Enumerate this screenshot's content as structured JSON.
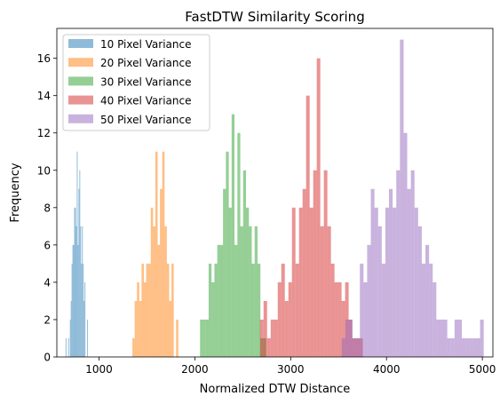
{
  "chart_data": {
    "type": "histogram",
    "title": "FastDTW Similarity Scoring",
    "xlabel": "Normalized DTW Distance",
    "ylabel": "Frequency",
    "xlim": [
      560,
      5110
    ],
    "ylim": [
      0,
      17.6
    ],
    "xticks": [
      1000,
      2000,
      3000,
      4000,
      5000
    ],
    "yticks": [
      0,
      2,
      4,
      6,
      8,
      10,
      12,
      14,
      16
    ],
    "legend_position": "top-left",
    "alpha": 0.5,
    "series": [
      {
        "name": "10 Pixel Variance",
        "color": "#1f77b4",
        "bin_width": 9,
        "bins": [
          [
            651,
            1
          ],
          [
            678,
            1
          ],
          [
            696,
            2
          ],
          [
            705,
            3
          ],
          [
            714,
            5
          ],
          [
            723,
            6
          ],
          [
            732,
            6
          ],
          [
            741,
            8
          ],
          [
            750,
            8
          ],
          [
            759,
            7
          ],
          [
            768,
            11
          ],
          [
            777,
            6
          ],
          [
            786,
            9
          ],
          [
            795,
            10
          ],
          [
            804,
            7
          ],
          [
            813,
            5
          ],
          [
            822,
            7
          ],
          [
            831,
            5
          ],
          [
            840,
            3
          ],
          [
            849,
            4
          ],
          [
            876,
            2
          ]
        ]
      },
      {
        "name": "20 Pixel Variance",
        "color": "#ff7f0e",
        "bin_width": 24,
        "bins": [
          [
            1348,
            1
          ],
          [
            1372,
            3
          ],
          [
            1396,
            4
          ],
          [
            1420,
            3
          ],
          [
            1444,
            5
          ],
          [
            1468,
            4
          ],
          [
            1492,
            5
          ],
          [
            1516,
            5
          ],
          [
            1540,
            8
          ],
          [
            1564,
            7
          ],
          [
            1588,
            11
          ],
          [
            1612,
            6
          ],
          [
            1636,
            9
          ],
          [
            1660,
            11
          ],
          [
            1684,
            7
          ],
          [
            1708,
            5
          ],
          [
            1732,
            3
          ],
          [
            1756,
            5
          ],
          [
            1804,
            2
          ]
        ]
      },
      {
        "name": "30 Pixel Variance",
        "color": "#2ca02c",
        "bin_width": 30,
        "bins": [
          [
            2054,
            2
          ],
          [
            2084,
            2
          ],
          [
            2114,
            2
          ],
          [
            2144,
            5
          ],
          [
            2174,
            4
          ],
          [
            2204,
            5
          ],
          [
            2234,
            6
          ],
          [
            2264,
            6
          ],
          [
            2294,
            9
          ],
          [
            2324,
            11
          ],
          [
            2354,
            8
          ],
          [
            2384,
            13
          ],
          [
            2414,
            6
          ],
          [
            2444,
            12
          ],
          [
            2474,
            7
          ],
          [
            2504,
            10
          ],
          [
            2534,
            8
          ],
          [
            2564,
            7
          ],
          [
            2594,
            5
          ],
          [
            2624,
            7
          ],
          [
            2654,
            5
          ],
          [
            2684,
            1
          ],
          [
            2714,
            1
          ]
        ]
      },
      {
        "name": "40 Pixel Variance",
        "color": "#d62728",
        "bin_width": 37,
        "bins": [
          [
            2680,
            2
          ],
          [
            2717,
            3
          ],
          [
            2754,
            1
          ],
          [
            2791,
            2
          ],
          [
            2828,
            2
          ],
          [
            2865,
            4
          ],
          [
            2902,
            5
          ],
          [
            2939,
            3
          ],
          [
            2976,
            4
          ],
          [
            3013,
            8
          ],
          [
            3050,
            5
          ],
          [
            3087,
            8
          ],
          [
            3124,
            9
          ],
          [
            3161,
            14
          ],
          [
            3198,
            8
          ],
          [
            3235,
            10
          ],
          [
            3272,
            16
          ],
          [
            3309,
            7
          ],
          [
            3346,
            10
          ],
          [
            3383,
            7
          ],
          [
            3420,
            5
          ],
          [
            3457,
            4
          ],
          [
            3494,
            4
          ],
          [
            3531,
            3
          ],
          [
            3568,
            4
          ],
          [
            3605,
            2
          ],
          [
            3642,
            1
          ],
          [
            3679,
            1
          ],
          [
            3716,
            1
          ]
        ]
      },
      {
        "name": "50 Pixel Variance",
        "color": "#9467bd",
        "bin_width": 38,
        "bins": [
          [
            3532,
            1
          ],
          [
            3570,
            2
          ],
          [
            3608,
            2
          ],
          [
            3646,
            1
          ],
          [
            3684,
            1
          ],
          [
            3722,
            5
          ],
          [
            3760,
            4
          ],
          [
            3798,
            6
          ],
          [
            3836,
            9
          ],
          [
            3874,
            8
          ],
          [
            3912,
            7
          ],
          [
            3950,
            5
          ],
          [
            3988,
            8
          ],
          [
            4026,
            9
          ],
          [
            4064,
            8
          ],
          [
            4102,
            10
          ],
          [
            4140,
            17
          ],
          [
            4178,
            12
          ],
          [
            4216,
            9
          ],
          [
            4254,
            10
          ],
          [
            4292,
            8
          ],
          [
            4330,
            7
          ],
          [
            4368,
            5
          ],
          [
            4406,
            6
          ],
          [
            4444,
            5
          ],
          [
            4482,
            4
          ],
          [
            4520,
            2
          ],
          [
            4558,
            2
          ],
          [
            4596,
            2
          ],
          [
            4634,
            1
          ],
          [
            4672,
            1
          ],
          [
            4710,
            2
          ],
          [
            4748,
            2
          ],
          [
            4786,
            1
          ],
          [
            4824,
            1
          ],
          [
            4862,
            1
          ],
          [
            4900,
            1
          ],
          [
            4938,
            1
          ],
          [
            4976,
            2
          ]
        ]
      }
    ]
  }
}
